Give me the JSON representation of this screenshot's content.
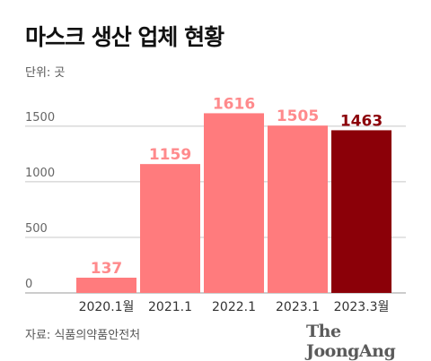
{
  "title": "마스크 생산 업체 현황",
  "unit_label": "단위: 곳",
  "source": "자료: 식품의약품안전처",
  "logo": "The JoongAng",
  "chart_data": {
    "type": "bar",
    "title": "마스크 생산 업체 현황",
    "xlabel": "",
    "ylabel": "",
    "unit": "곳",
    "categories": [
      "2020.1월",
      "2021.1",
      "2022.1",
      "2023.1",
      "2023.3월"
    ],
    "values": [
      137,
      1159,
      1616,
      1505,
      1463
    ],
    "yticks": [
      0,
      500,
      1000,
      1500
    ],
    "ylim": [
      0,
      1700
    ],
    "grid": true,
    "colors": {
      "bar": "#ff7b7d",
      "highlight_bar": "#8b0008",
      "label": "#ff8a8c",
      "highlight_label": "#8b0008",
      "grid": "#c8c8c8"
    },
    "highlight_index": 4
  }
}
